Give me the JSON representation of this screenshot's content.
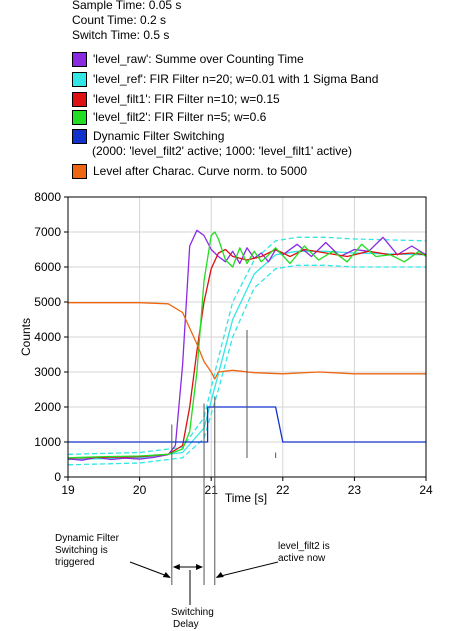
{
  "header": {
    "sample_time": "Sample Time: 0.05 s",
    "count_time": "Count Time: 0.2 s",
    "switch_time": "Switch Time: 0.5 s"
  },
  "legend": [
    {
      "label": "'level_raw': Summe over Counting Time",
      "color": "#8a2be2"
    },
    {
      "label": "'level_ref': FIR Filter n=20; w=0.01 with 1 Sigma Band",
      "color": "#33e6e6"
    },
    {
      "label": "'level_filt1': FIR Filter n=10; w=0.15",
      "color": "#dd1111"
    },
    {
      "label": "'level_filt2': FIR Filter n=5; w=0.6",
      "color": "#22dd22"
    },
    {
      "label": "Dynamic Filter Switching",
      "sublabel": "(2000: 'level_filt2' active; 1000: 'level_filt1' active)",
      "color": "#1133cc"
    },
    {
      "label": "Level after Charac. Curve norm. to 5000",
      "color": "#ee6611"
    }
  ],
  "annotations": {
    "triggered": [
      "Dynamic Filter",
      "Switching is",
      "triggered"
    ],
    "active": [
      "level_filt2 is",
      "active now"
    ],
    "delay": [
      "Switching",
      "Delay"
    ]
  },
  "chart_data": {
    "type": "line",
    "xlabel": "Time [s]",
    "ylabel": "Counts",
    "xlim": [
      19,
      24
    ],
    "ylim": [
      0,
      8000
    ],
    "xticks": [
      19,
      20,
      21,
      22,
      23,
      24
    ],
    "yticks": [
      0,
      1000,
      2000,
      3000,
      4000,
      5000,
      6000,
      7000,
      8000
    ],
    "grid": true,
    "series": [
      {
        "name": "'level_ref' sigma band",
        "color": "#33e6e6",
        "dashed": true,
        "x": [
          19,
          20,
          20.6,
          20.9,
          21.1,
          21.3,
          21.6,
          21.9,
          22.2,
          22.6,
          23,
          24
        ],
        "y": [
          350,
          400,
          550,
          1100,
          2500,
          4000,
          5400,
          5950,
          6050,
          6050,
          6000,
          6000
        ]
      },
      {
        "name": "'level_ref' sigma band",
        "color": "#33e6e6",
        "dashed": true,
        "x": [
          19,
          20,
          20.6,
          20.9,
          21.1,
          21.3,
          21.6,
          21.9,
          22.2,
          22.6,
          23,
          24
        ],
        "y": [
          650,
          700,
          850,
          1700,
          3400,
          5000,
          6200,
          6750,
          6850,
          6850,
          6800,
          6750
        ]
      },
      {
        "name": "'level_ref'",
        "color": "#33e6e6",
        "x": [
          19,
          20,
          20.6,
          20.9,
          21.1,
          21.3,
          21.6,
          21.9,
          22.2,
          22.6,
          23,
          24
        ],
        "y": [
          500,
          550,
          700,
          1400,
          2950,
          4500,
          5800,
          6350,
          6450,
          6450,
          6400,
          6350
        ]
      },
      {
        "name": "'level_raw'",
        "color": "#8a2be2",
        "x": [
          19,
          19.2,
          19.4,
          19.6,
          19.8,
          20,
          20.2,
          20.4,
          20.5,
          20.6,
          20.7,
          20.8,
          20.9,
          21,
          21.1,
          21.2,
          21.3,
          21.4,
          21.5,
          21.6,
          21.7,
          21.8,
          21.9,
          22,
          22.2,
          22.4,
          22.6,
          22.8,
          23,
          23.2,
          23.4,
          23.6,
          23.8,
          24
        ],
        "y": [
          520,
          480,
          560,
          500,
          540,
          510,
          560,
          640,
          900,
          3200,
          6600,
          7050,
          6900,
          6500,
          6300,
          6150,
          6450,
          6100,
          6550,
          6250,
          6400,
          6150,
          6500,
          6350,
          6650,
          6300,
          6700,
          6300,
          6500,
          6450,
          6850,
          6350,
          6600,
          6350
        ]
      },
      {
        "name": "'level_filt1'",
        "color": "#dd1111",
        "x": [
          19,
          19.5,
          20,
          20.4,
          20.6,
          20.7,
          20.8,
          20.9,
          21,
          21.1,
          21.2,
          21.3,
          21.5,
          21.7,
          21.9,
          22.1,
          22.3,
          22.6,
          22.9,
          23.2,
          23.5,
          23.8,
          24
        ],
        "y": [
          540,
          560,
          580,
          650,
          900,
          2000,
          3600,
          5000,
          5950,
          6400,
          6500,
          6300,
          6200,
          6300,
          6500,
          6300,
          6500,
          6400,
          6300,
          6450,
          6350,
          6400,
          6350
        ]
      },
      {
        "name": "'level_filt2'",
        "color": "#22dd22",
        "x": [
          19,
          19.5,
          20,
          20.4,
          20.6,
          20.7,
          20.8,
          20.9,
          21,
          21.05,
          21.1,
          21.2,
          21.3,
          21.4,
          21.5,
          21.6,
          21.7,
          21.8,
          21.9,
          22.1,
          22.3,
          22.5,
          22.7,
          22.9,
          23.1,
          23.3,
          23.5,
          23.7,
          23.9,
          24
        ],
        "y": [
          550,
          580,
          600,
          650,
          800,
          1300,
          3000,
          5600,
          6900,
          7000,
          6800,
          6200,
          6000,
          6550,
          6100,
          6450,
          6150,
          6350,
          6550,
          6100,
          6600,
          6200,
          6450,
          6150,
          6650,
          6300,
          6350,
          6150,
          6450,
          6300
        ]
      },
      {
        "name": "Dynamic Filter Switching",
        "color": "#1133cc",
        "x": [
          19,
          20.95,
          20.95,
          21.9,
          21.95,
          22,
          24
        ],
        "y": [
          1000,
          1000,
          2000,
          2000,
          1500,
          1000,
          1000
        ]
      },
      {
        "name": "Level after Charac. Curve norm. to 5000",
        "color": "#ee6611",
        "x": [
          19,
          20,
          20.4,
          20.6,
          20.8,
          20.9,
          21,
          21.05,
          21.1,
          21.3,
          21.6,
          22,
          22.5,
          23,
          23.5,
          24
        ],
        "y": [
          4980,
          4980,
          4950,
          4700,
          3800,
          3300,
          3000,
          2800,
          3000,
          3050,
          2980,
          2950,
          3000,
          2950,
          2950,
          2950
        ]
      }
    ]
  }
}
